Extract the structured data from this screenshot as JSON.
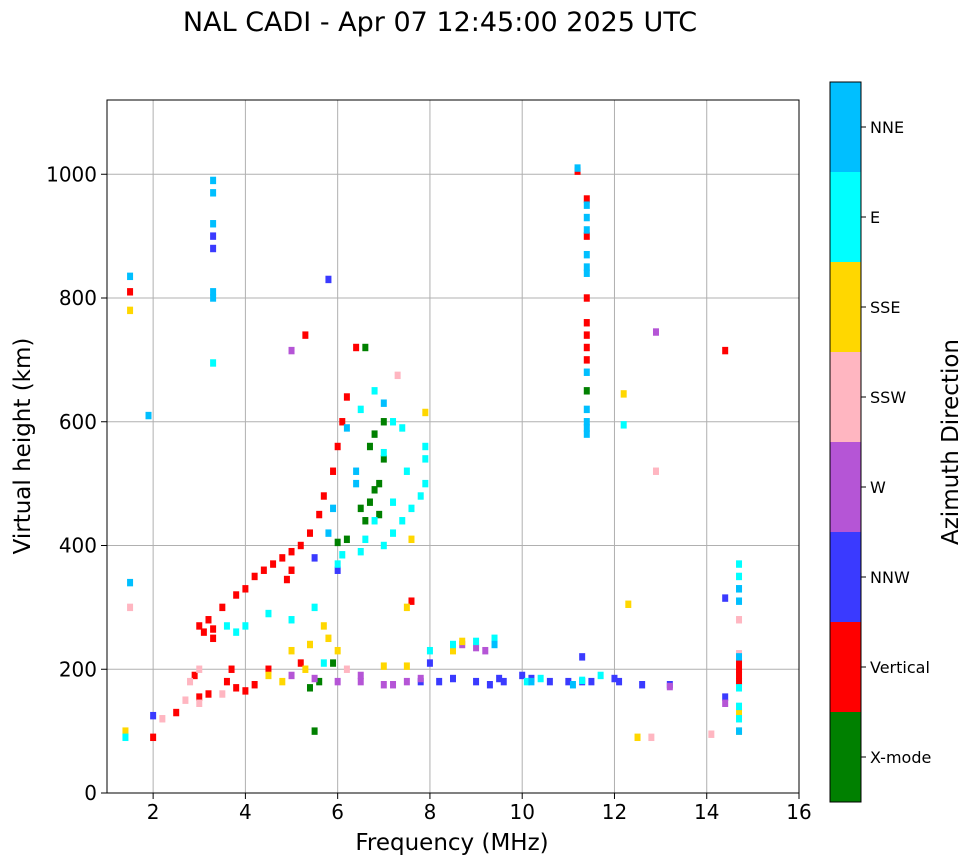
{
  "chart_data": {
    "type": "scatter",
    "title": "NAL CADI - Apr 07 12:45:00 2025 UTC",
    "xlabel": "Frequency (MHz)",
    "ylabel": "Virtual height (km)",
    "xlim": [
      1,
      16
    ],
    "ylim": [
      0,
      1120
    ],
    "xticks": [
      2,
      4,
      6,
      8,
      10,
      12,
      14,
      16
    ],
    "yticks": [
      0,
      200,
      400,
      600,
      800,
      1000
    ],
    "grid": true,
    "colorbar": {
      "label": "Azimuth Direction",
      "categories": [
        {
          "name": "X-mode",
          "color": "#008000"
        },
        {
          "name": "Vertical",
          "color": "#ff0000"
        },
        {
          "name": "NNW",
          "color": "#3a3aff"
        },
        {
          "name": "W",
          "color": "#b555d6"
        },
        {
          "name": "SSW",
          "color": "#ffb6c1"
        },
        {
          "name": "SSE",
          "color": "#ffd700"
        },
        {
          "name": "E",
          "color": "#00ffff"
        },
        {
          "name": "NNE",
          "color": "#00bfff"
        }
      ]
    },
    "series": [
      {
        "name": "X-mode",
        "points": [
          [
            5.5,
            100
          ],
          [
            6.0,
            405
          ],
          [
            6.2,
            410
          ],
          [
            6.5,
            460
          ],
          [
            6.7,
            470
          ],
          [
            6.8,
            490
          ],
          [
            6.9,
            500
          ],
          [
            7.0,
            540
          ],
          [
            6.7,
            560
          ],
          [
            6.8,
            580
          ],
          [
            7.0,
            600
          ],
          [
            6.6,
            720
          ],
          [
            5.9,
            210
          ],
          [
            5.6,
            180
          ],
          [
            11.4,
            650
          ],
          [
            5.4,
            170
          ],
          [
            6.9,
            450
          ],
          [
            6.6,
            440
          ]
        ]
      },
      {
        "name": "Vertical",
        "points": [
          [
            1.5,
            810
          ],
          [
            3.0,
            270
          ],
          [
            3.1,
            260
          ],
          [
            3.2,
            280
          ],
          [
            3.3,
            250
          ],
          [
            3.5,
            300
          ],
          [
            3.8,
            320
          ],
          [
            4.0,
            330
          ],
          [
            4.2,
            350
          ],
          [
            4.4,
            360
          ],
          [
            4.6,
            370
          ],
          [
            4.8,
            380
          ],
          [
            5.0,
            390
          ],
          [
            5.2,
            400
          ],
          [
            5.4,
            420
          ],
          [
            5.6,
            450
          ],
          [
            5.7,
            480
          ],
          [
            5.9,
            520
          ],
          [
            6.0,
            560
          ],
          [
            6.1,
            600
          ],
          [
            6.2,
            640
          ],
          [
            6.4,
            720
          ],
          [
            5.3,
            740
          ],
          [
            3.6,
            180
          ],
          [
            3.8,
            170
          ],
          [
            4.0,
            165
          ],
          [
            4.2,
            175
          ],
          [
            4.5,
            200
          ],
          [
            5.2,
            210
          ],
          [
            3.0,
            155
          ],
          [
            3.2,
            160
          ],
          [
            2.9,
            190
          ],
          [
            11.4,
            960
          ],
          [
            11.4,
            900
          ],
          [
            11.4,
            800
          ],
          [
            11.4,
            760
          ],
          [
            11.4,
            740
          ],
          [
            11.4,
            720
          ],
          [
            11.4,
            700
          ],
          [
            14.4,
            715
          ],
          [
            14.7,
            210
          ],
          [
            14.7,
            200
          ],
          [
            14.7,
            190
          ],
          [
            14.7,
            180
          ],
          [
            11.2,
            1005
          ],
          [
            2.5,
            130
          ],
          [
            2.0,
            90
          ],
          [
            7.6,
            310
          ],
          [
            3.3,
            265
          ],
          [
            3.7,
            200
          ],
          [
            5.0,
            360
          ],
          [
            4.9,
            345
          ]
        ]
      },
      {
        "name": "NNW",
        "points": [
          [
            3.3,
            900
          ],
          [
            3.3,
            880
          ],
          [
            5.8,
            830
          ],
          [
            8.0,
            210
          ],
          [
            8.5,
            185
          ],
          [
            9.0,
            180
          ],
          [
            9.3,
            175
          ],
          [
            9.6,
            180
          ],
          [
            10.0,
            190
          ],
          [
            10.2,
            185
          ],
          [
            10.6,
            180
          ],
          [
            11.0,
            180
          ],
          [
            11.3,
            180
          ],
          [
            11.5,
            180
          ],
          [
            12.0,
            185
          ],
          [
            12.1,
            180
          ],
          [
            14.4,
            315
          ],
          [
            14.4,
            155
          ],
          [
            2.0,
            125
          ],
          [
            7.8,
            180
          ],
          [
            8.2,
            180
          ],
          [
            9.5,
            185
          ],
          [
            6.0,
            360
          ],
          [
            5.5,
            380
          ],
          [
            11.3,
            220
          ],
          [
            12.6,
            175
          ],
          [
            13.2,
            175
          ]
        ]
      },
      {
        "name": "W",
        "points": [
          [
            5.0,
            190
          ],
          [
            5.5,
            185
          ],
          [
            6.0,
            180
          ],
          [
            6.5,
            180
          ],
          [
            7.0,
            175
          ],
          [
            7.5,
            180
          ],
          [
            7.8,
            185
          ],
          [
            8.5,
            235
          ],
          [
            8.7,
            240
          ],
          [
            9.0,
            235
          ],
          [
            9.2,
            230
          ],
          [
            5.0,
            715
          ],
          [
            14.4,
            145
          ],
          [
            12.9,
            745
          ],
          [
            6.5,
            190
          ],
          [
            7.2,
            175
          ],
          [
            13.2,
            172
          ]
        ]
      },
      {
        "name": "SSW",
        "points": [
          [
            1.5,
            300
          ],
          [
            2.2,
            120
          ],
          [
            2.7,
            150
          ],
          [
            3.0,
            145
          ],
          [
            3.5,
            160
          ],
          [
            3.0,
            200
          ],
          [
            2.8,
            180
          ],
          [
            7.3,
            675
          ],
          [
            12.9,
            520
          ],
          [
            14.1,
            95
          ],
          [
            14.7,
            280
          ],
          [
            14.7,
            225
          ],
          [
            12.8,
            90
          ],
          [
            6.2,
            200
          ]
        ]
      },
      {
        "name": "SSE",
        "points": [
          [
            1.5,
            780
          ],
          [
            1.4,
            100
          ],
          [
            4.5,
            190
          ],
          [
            4.8,
            180
          ],
          [
            5.0,
            230
          ],
          [
            5.4,
            240
          ],
          [
            5.7,
            270
          ],
          [
            5.8,
            250
          ],
          [
            6.0,
            230
          ],
          [
            7.0,
            205
          ],
          [
            7.5,
            205
          ],
          [
            7.5,
            300
          ],
          [
            7.6,
            410
          ],
          [
            7.9,
            615
          ],
          [
            8.5,
            230
          ],
          [
            8.7,
            245
          ],
          [
            12.2,
            645
          ],
          [
            12.3,
            305
          ],
          [
            12.5,
            90
          ],
          [
            14.7,
            100
          ],
          [
            14.7,
            130
          ],
          [
            5.3,
            200
          ]
        ]
      },
      {
        "name": "E",
        "points": [
          [
            1.4,
            90
          ],
          [
            3.6,
            270
          ],
          [
            3.8,
            260
          ],
          [
            4.0,
            270
          ],
          [
            4.5,
            290
          ],
          [
            5.0,
            280
          ],
          [
            5.5,
            300
          ],
          [
            6.0,
            370
          ],
          [
            6.5,
            390
          ],
          [
            7.0,
            400
          ],
          [
            7.2,
            420
          ],
          [
            7.4,
            440
          ],
          [
            7.6,
            460
          ],
          [
            7.8,
            480
          ],
          [
            7.9,
            500
          ],
          [
            7.9,
            540
          ],
          [
            7.9,
            560
          ],
          [
            7.5,
            520
          ],
          [
            7.2,
            470
          ],
          [
            6.8,
            440
          ],
          [
            7.0,
            550
          ],
          [
            7.2,
            600
          ],
          [
            7.4,
            590
          ],
          [
            6.5,
            620
          ],
          [
            6.8,
            650
          ],
          [
            3.3,
            695
          ],
          [
            12.2,
            595
          ],
          [
            8.0,
            230
          ],
          [
            8.5,
            240
          ],
          [
            9.0,
            245
          ],
          [
            9.4,
            250
          ],
          [
            10.1,
            180
          ],
          [
            10.4,
            185
          ],
          [
            11.3,
            182
          ],
          [
            11.7,
            190
          ],
          [
            14.7,
            120
          ],
          [
            14.7,
            140
          ],
          [
            14.7,
            170
          ],
          [
            14.7,
            330
          ],
          [
            14.7,
            350
          ],
          [
            14.7,
            370
          ],
          [
            5.7,
            210
          ],
          [
            6.1,
            385
          ],
          [
            6.6,
            410
          ]
        ]
      },
      {
        "name": "NNE",
        "points": [
          [
            1.5,
            835
          ],
          [
            1.5,
            340
          ],
          [
            1.9,
            610
          ],
          [
            3.3,
            990
          ],
          [
            3.3,
            970
          ],
          [
            3.3,
            920
          ],
          [
            3.3,
            810
          ],
          [
            3.3,
            800
          ],
          [
            11.4,
            950
          ],
          [
            11.4,
            930
          ],
          [
            11.4,
            910
          ],
          [
            11.4,
            870
          ],
          [
            11.4,
            850
          ],
          [
            11.4,
            840
          ],
          [
            11.4,
            680
          ],
          [
            11.4,
            620
          ],
          [
            11.4,
            600
          ],
          [
            11.4,
            580
          ],
          [
            11.2,
            1010
          ],
          [
            5.9,
            460
          ],
          [
            6.4,
            500
          ],
          [
            6.4,
            520
          ],
          [
            7.0,
            630
          ],
          [
            6.2,
            590
          ],
          [
            5.8,
            420
          ],
          [
            9.4,
            240
          ],
          [
            10.2,
            180
          ],
          [
            11.1,
            175
          ],
          [
            14.7,
            330
          ],
          [
            14.7,
            310
          ],
          [
            14.7,
            220
          ],
          [
            14.7,
            100
          ],
          [
            11.4,
            590
          ]
        ]
      }
    ]
  }
}
